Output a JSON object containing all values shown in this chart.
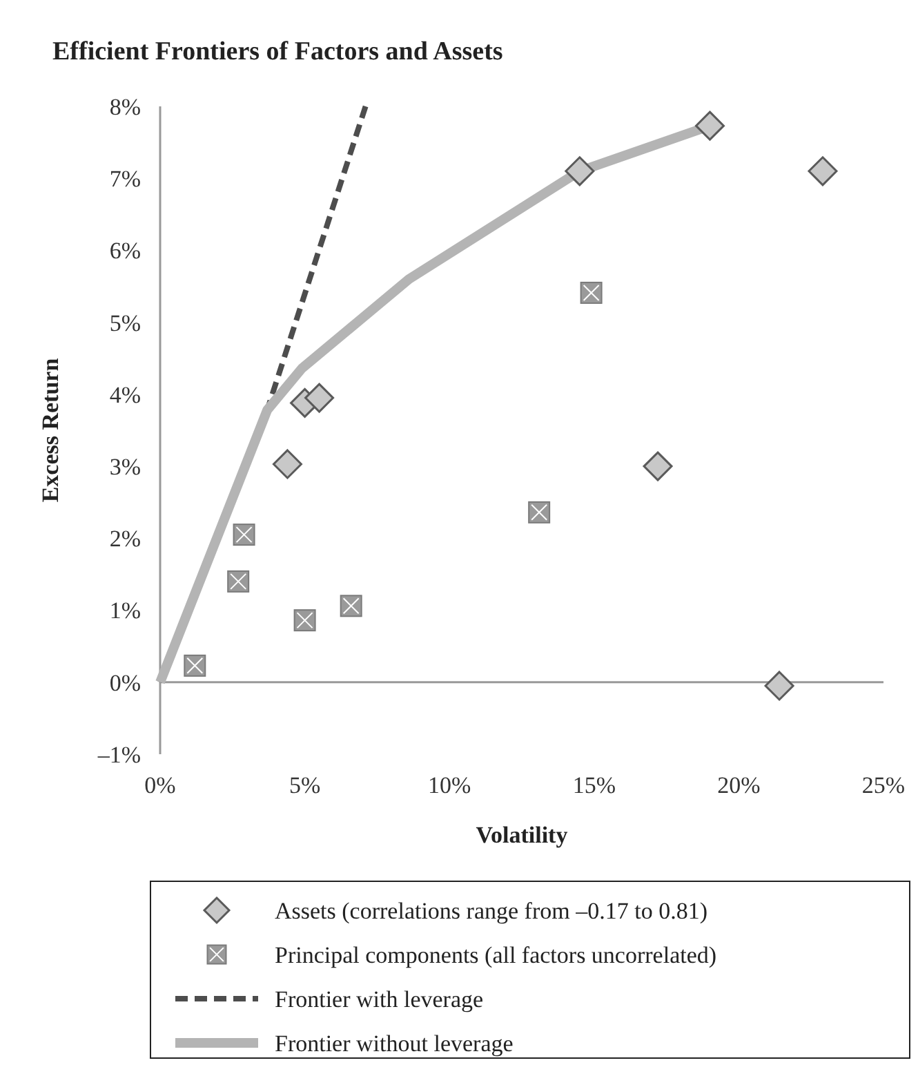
{
  "chart_data": {
    "type": "scatter",
    "title": "Efficient Frontiers of Factors and Assets",
    "xlabel": "Volatility",
    "ylabel": "Excess Return",
    "xlim": [
      0,
      25
    ],
    "ylim": [
      -1,
      8
    ],
    "xticks": [
      {
        "value": 0,
        "label": "0%"
      },
      {
        "value": 5,
        "label": "5%"
      },
      {
        "value": 10,
        "label": "10%"
      },
      {
        "value": 15,
        "label": "15%"
      },
      {
        "value": 20,
        "label": "20%"
      },
      {
        "value": 25,
        "label": "25%"
      }
    ],
    "yticks": [
      {
        "value": -1,
        "label": "–1%"
      },
      {
        "value": 0,
        "label": "0%"
      },
      {
        "value": 1,
        "label": "1%"
      },
      {
        "value": 2,
        "label": "2%"
      },
      {
        "value": 3,
        "label": "3%"
      },
      {
        "value": 4,
        "label": "4%"
      },
      {
        "value": 5,
        "label": "5%"
      },
      {
        "value": 6,
        "label": "6%"
      },
      {
        "value": 7,
        "label": "7%"
      },
      {
        "value": 8,
        "label": "8%"
      }
    ],
    "legend": "bottom",
    "series": [
      {
        "name": "Assets (correlations range from –0.17 to 0.81)",
        "marker": "diamond",
        "color": "#c8c8c8",
        "x": [
          4.4,
          5.0,
          5.5,
          14.5,
          19.0,
          22.9,
          17.2,
          21.4
        ],
        "values": [
          3.03,
          3.88,
          3.95,
          7.1,
          7.73,
          7.1,
          3.0,
          -0.05
        ]
      },
      {
        "name": "Principal components (all factors uncorrelated)",
        "marker": "square",
        "color": "#9a9a9a",
        "x": [
          1.2,
          2.7,
          2.9,
          5.0,
          6.6,
          13.1,
          14.9
        ],
        "values": [
          0.23,
          1.4,
          2.05,
          0.86,
          1.06,
          2.36,
          5.41
        ]
      },
      {
        "name": "Frontier with leverage",
        "type": "line",
        "line_style": "dashed",
        "color": "#4d4d4d",
        "x": [
          0,
          3.7,
          7.1
        ],
        "values": [
          0,
          3.78,
          8.0
        ]
      },
      {
        "name": "Frontier without leverage",
        "type": "line",
        "line_style": "solid",
        "color": "#b4b4b4",
        "x": [
          0,
          3.7,
          4.9,
          8.6,
          14.5,
          19.0
        ],
        "values": [
          0,
          3.78,
          4.36,
          5.6,
          7.1,
          7.73
        ]
      }
    ]
  }
}
